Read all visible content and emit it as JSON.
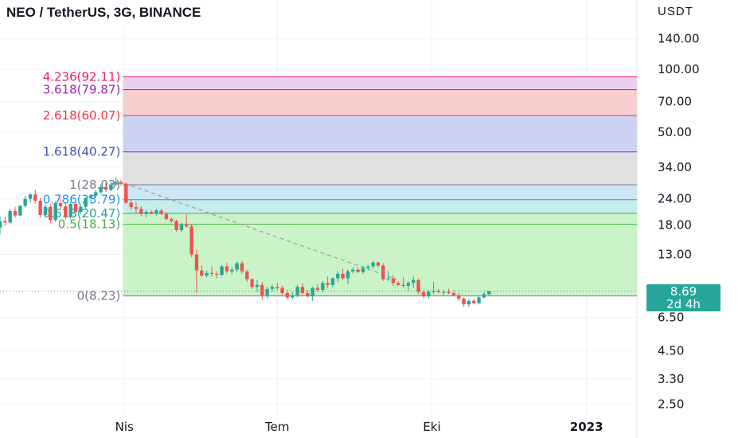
{
  "header": {
    "title": "NEO / TetherUS, 3G, BINANCE",
    "currency": "USDT"
  },
  "price_box": {
    "price": "8.69",
    "countdown": "2d 4h"
  },
  "colors": {
    "up": "#26a69a",
    "down": "#ef5350",
    "trendline": "#9e9e9e"
  },
  "chart_data": {
    "type": "candlestick",
    "title": "NEO / TetherUS, 3G, BINANCE",
    "yscale": "log",
    "ylim": [
      2.2,
      165
    ],
    "y_ticks": [
      "140.00",
      "100.00",
      "70.00",
      "50.00",
      "34.00",
      "24.00",
      "18.00",
      "13.00",
      "6.50",
      "4.50",
      "3.30",
      "2.50"
    ],
    "x_ticks": [
      "Nis",
      "Tem",
      "Eki",
      "2023"
    ],
    "x_tick_dates": [
      "2022-04-01",
      "2022-07-01",
      "2022-10-01",
      "2023-01-01"
    ],
    "xlim": [
      "2022-01-17",
      "2023-01-31"
    ],
    "fib_levels": [
      {
        "ratio": "0",
        "value": 8.23,
        "label": "0(8.23)",
        "color": "#787b86",
        "fill": "#cbf3c8"
      },
      {
        "ratio": "0.5",
        "value": 18.13,
        "label": "0.5(18.13)",
        "color": "#4caf50",
        "fill": "#cbf3c8"
      },
      {
        "ratio": "0.618",
        "value": 20.47,
        "label": "0.618(20.47)",
        "color": "#26a69a",
        "fill": "#c8ece8"
      },
      {
        "ratio": "0.786",
        "value": 23.79,
        "label": "0.786(23.79)",
        "color": "#2196f3",
        "fill": "#cde6f5"
      },
      {
        "ratio": "1",
        "value": 28.03,
        "label": "1(28.03)",
        "color": "#787b86",
        "fill": "#e0e0e0"
      },
      {
        "ratio": "1.618",
        "value": 40.27,
        "label": "1.618(40.27)",
        "color": "#3f51b5",
        "fill": "#cdd2f3"
      },
      {
        "ratio": "2.618",
        "value": 60.07,
        "label": "2.618(60.07)",
        "color": "#f23645",
        "fill": "#f7cfcf"
      },
      {
        "ratio": "3.618",
        "value": 79.87,
        "label": "3.618(79.87)",
        "color": "#9c27b0",
        "fill": "#ead0f0"
      },
      {
        "ratio": "4.236",
        "value": 92.11,
        "label": "4.236(92.11)",
        "color": "#e91e63",
        "fill": "#f3cfe3"
      }
    ],
    "trendline": {
      "from": [
        "2022-04-01",
        28.5
      ],
      "to": [
        "2022-09-10",
        9.9
      ]
    },
    "last_price": 8.69,
    "candles": [
      [
        "2022-01-17",
        17.5,
        19.8,
        16.2,
        18.8
      ],
      [
        "2022-01-20",
        18.8,
        19.6,
        17.9,
        18.5
      ],
      [
        "2022-01-23",
        18.5,
        21.5,
        18.2,
        21.0
      ],
      [
        "2022-01-26",
        21.0,
        22.0,
        19.5,
        20.0
      ],
      [
        "2022-01-29",
        20.0,
        22.5,
        19.8,
        22.2
      ],
      [
        "2022-02-01",
        22.2,
        24.8,
        21.8,
        24.0
      ],
      [
        "2022-02-04",
        24.0,
        25.6,
        23.0,
        25.2
      ],
      [
        "2022-02-07",
        25.2,
        26.5,
        22.8,
        23.5
      ],
      [
        "2022-02-10",
        23.5,
        24.2,
        19.5,
        20.1
      ],
      [
        "2022-02-13",
        20.1,
        22.8,
        19.8,
        22.0
      ],
      [
        "2022-02-16",
        22.0,
        22.6,
        18.3,
        19.0
      ],
      [
        "2022-02-19",
        19.0,
        23.4,
        18.6,
        22.9
      ],
      [
        "2022-02-22",
        22.9,
        24.2,
        21.2,
        22.1
      ],
      [
        "2022-02-25",
        22.1,
        23.2,
        19.1,
        19.6
      ],
      [
        "2022-02-28",
        19.6,
        23.1,
        19.3,
        22.7
      ],
      [
        "2022-03-03",
        22.7,
        23.6,
        20.2,
        20.8
      ],
      [
        "2022-03-06",
        20.8,
        22.6,
        20.3,
        22.0
      ],
      [
        "2022-03-09",
        22.0,
        24.6,
        21.5,
        24.2
      ],
      [
        "2022-03-12",
        24.2,
        25.4,
        23.3,
        24.9
      ],
      [
        "2022-03-15",
        24.9,
        26.6,
        24.2,
        25.8
      ],
      [
        "2022-03-18",
        25.8,
        28.1,
        25.2,
        27.3
      ],
      [
        "2022-03-21",
        27.3,
        28.5,
        25.9,
        26.5
      ],
      [
        "2022-03-24",
        26.5,
        28.8,
        26.1,
        28.1
      ],
      [
        "2022-03-27",
        28.1,
        30.5,
        27.5,
        28.9
      ],
      [
        "2022-03-30",
        28.9,
        29.6,
        27.7,
        28.3
      ],
      [
        "2022-04-02",
        28.3,
        28.6,
        22.6,
        23.0
      ],
      [
        "2022-04-05",
        23.0,
        23.6,
        21.3,
        21.9
      ],
      [
        "2022-04-08",
        21.9,
        23.1,
        20.6,
        21.5
      ],
      [
        "2022-04-11",
        21.5,
        22.1,
        19.8,
        20.3
      ],
      [
        "2022-04-14",
        20.3,
        21.3,
        19.6,
        20.8
      ],
      [
        "2022-04-17",
        20.8,
        21.2,
        20.2,
        20.4
      ],
      [
        "2022-04-20",
        20.4,
        21.6,
        20.0,
        21.1
      ],
      [
        "2022-04-23",
        21.1,
        21.5,
        20.1,
        20.3
      ],
      [
        "2022-04-26",
        20.3,
        20.7,
        18.9,
        19.2
      ],
      [
        "2022-04-29",
        19.2,
        19.6,
        18.4,
        18.8
      ],
      [
        "2022-05-02",
        18.8,
        19.1,
        16.7,
        17.0
      ],
      [
        "2022-05-05",
        17.0,
        18.4,
        16.6,
        18.0
      ],
      [
        "2022-05-08",
        18.0,
        20.2,
        17.5,
        17.7
      ],
      [
        "2022-05-11",
        17.7,
        18.2,
        12.6,
        13.0
      ],
      [
        "2022-05-14",
        13.0,
        13.7,
        8.5,
        10.9
      ],
      [
        "2022-05-17",
        10.9,
        11.5,
        10.1,
        10.3
      ],
      [
        "2022-05-20",
        10.3,
        10.9,
        10.1,
        10.6
      ],
      [
        "2022-05-23",
        10.6,
        11.4,
        10.2,
        10.5
      ],
      [
        "2022-05-26",
        10.5,
        10.8,
        10.0,
        10.4
      ],
      [
        "2022-05-29",
        10.4,
        11.6,
        10.2,
        11.4
      ],
      [
        "2022-06-01",
        11.4,
        11.9,
        10.6,
        10.8
      ],
      [
        "2022-06-04",
        10.8,
        11.3,
        10.4,
        11.0
      ],
      [
        "2022-06-07",
        11.0,
        12.0,
        10.7,
        11.8
      ],
      [
        "2022-06-10",
        11.8,
        12.1,
        10.5,
        10.8
      ],
      [
        "2022-06-13",
        10.8,
        11.0,
        9.6,
        9.9
      ],
      [
        "2022-06-16",
        9.9,
        10.0,
        8.9,
        9.1
      ],
      [
        "2022-06-19",
        9.1,
        9.8,
        8.6,
        9.3
      ],
      [
        "2022-06-22",
        9.3,
        9.6,
        7.9,
        8.3
      ],
      [
        "2022-06-25",
        8.3,
        9.1,
        8.0,
        8.9
      ],
      [
        "2022-06-28",
        8.9,
        9.3,
        8.6,
        9.1
      ],
      [
        "2022-07-01",
        9.1,
        9.5,
        8.8,
        9.0
      ],
      [
        "2022-07-04",
        9.0,
        9.2,
        8.3,
        8.5
      ],
      [
        "2022-07-07",
        8.5,
        8.8,
        7.9,
        8.1
      ],
      [
        "2022-07-10",
        8.1,
        8.6,
        7.9,
        8.3
      ],
      [
        "2022-07-13",
        8.3,
        9.3,
        8.1,
        9.1
      ],
      [
        "2022-07-16",
        9.1,
        9.5,
        8.3,
        8.5
      ],
      [
        "2022-07-19",
        8.5,
        8.8,
        8.1,
        8.2
      ],
      [
        "2022-07-22",
        8.2,
        9.1,
        7.8,
        9.0
      ],
      [
        "2022-07-25",
        9.0,
        9.4,
        8.6,
        8.8
      ],
      [
        "2022-07-28",
        8.8,
        9.7,
        8.6,
        9.5
      ],
      [
        "2022-07-31",
        9.5,
        10.2,
        9.0,
        9.3
      ],
      [
        "2022-08-03",
        9.3,
        10.1,
        9.1,
        10.0
      ],
      [
        "2022-08-06",
        10.0,
        10.8,
        9.6,
        10.5
      ],
      [
        "2022-08-09",
        10.5,
        11.1,
        9.8,
        10.0
      ],
      [
        "2022-08-12",
        10.0,
        11.0,
        9.4,
        10.8
      ],
      [
        "2022-08-15",
        10.8,
        11.3,
        10.5,
        11.0
      ],
      [
        "2022-08-18",
        11.0,
        11.3,
        10.6,
        10.7
      ],
      [
        "2022-08-21",
        10.7,
        11.5,
        10.5,
        11.2
      ],
      [
        "2022-08-24",
        11.2,
        11.6,
        11.0,
        11.4
      ],
      [
        "2022-08-27",
        11.4,
        12.1,
        11.1,
        11.9
      ],
      [
        "2022-08-30",
        11.9,
        12.0,
        11.3,
        11.5
      ],
      [
        "2022-09-02",
        11.5,
        11.8,
        9.7,
        9.9
      ],
      [
        "2022-09-05",
        9.9,
        10.8,
        9.7,
        10.0
      ],
      [
        "2022-09-08",
        10.0,
        10.4,
        9.2,
        9.5
      ],
      [
        "2022-09-11",
        9.5,
        9.7,
        9.2,
        9.3
      ],
      [
        "2022-09-14",
        9.3,
        10.1,
        9.0,
        9.2
      ],
      [
        "2022-09-17",
        9.2,
        9.7,
        8.7,
        9.5
      ],
      [
        "2022-09-20",
        9.5,
        10.2,
        9.0,
        9.8
      ],
      [
        "2022-09-23",
        9.8,
        10.0,
        8.4,
        8.6
      ],
      [
        "2022-09-26",
        8.6,
        8.7,
        8.0,
        8.2
      ],
      [
        "2022-09-29",
        8.2,
        8.8,
        8.0,
        8.6
      ],
      [
        "2022-10-02",
        8.6,
        9.6,
        8.4,
        8.7
      ],
      [
        "2022-10-05",
        8.7,
        8.9,
        8.5,
        8.6
      ],
      [
        "2022-10-08",
        8.6,
        8.8,
        8.3,
        8.6
      ],
      [
        "2022-10-11",
        8.6,
        8.9,
        8.4,
        8.5
      ],
      [
        "2022-10-14",
        8.5,
        8.7,
        8.2,
        8.3
      ],
      [
        "2022-10-17",
        8.3,
        8.5,
        7.8,
        8.0
      ],
      [
        "2022-10-20",
        8.0,
        8.1,
        7.3,
        7.5
      ],
      [
        "2022-10-23",
        7.5,
        8.0,
        7.3,
        7.8
      ],
      [
        "2022-10-26",
        7.8,
        8.0,
        7.5,
        7.6
      ],
      [
        "2022-10-29",
        7.6,
        8.3,
        7.5,
        8.1
      ],
      [
        "2022-11-01",
        8.1,
        8.6,
        8.0,
        8.4
      ],
      [
        "2022-11-04",
        8.4,
        8.7,
        8.2,
        8.69
      ]
    ]
  }
}
